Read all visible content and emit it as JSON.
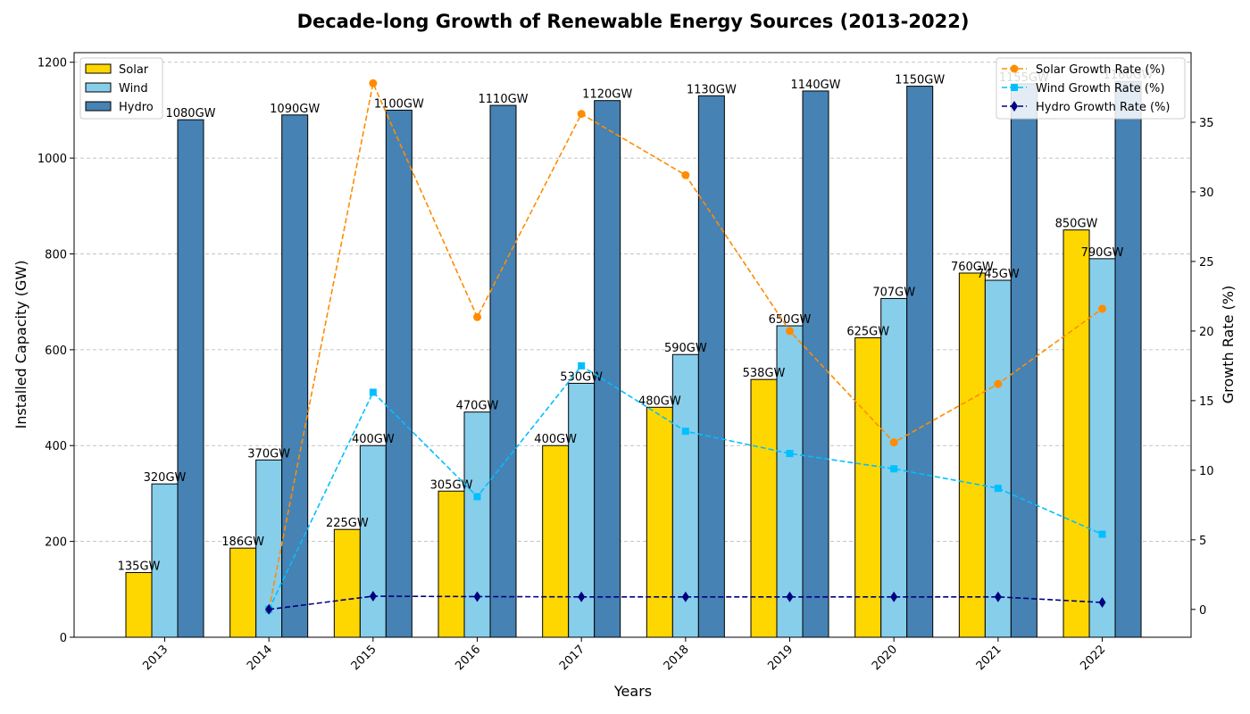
{
  "chart_data": {
    "type": "bar",
    "title": "Decade-long Growth of Renewable Energy Sources (2013-2022)",
    "xlabel": "Years",
    "ylabel": "Installed Capacity (GW)",
    "y2label": "Growth Rate (%)",
    "categories": [
      "2013",
      "2014",
      "2015",
      "2016",
      "2017",
      "2018",
      "2019",
      "2020",
      "2021",
      "2022"
    ],
    "ylim": [
      0,
      1220
    ],
    "yticks": [
      0,
      200,
      400,
      600,
      800,
      1000,
      1200
    ],
    "y2lim": [
      -2,
      40
    ],
    "y2ticks": [
      0,
      5,
      10,
      15,
      20,
      25,
      30,
      35
    ],
    "grid": "y-dashed",
    "value_suffix": "GW",
    "series": [
      {
        "name": "Solar",
        "color": "#FFD700",
        "values": [
          135,
          186,
          225,
          305,
          400,
          480,
          538,
          625,
          760,
          850
        ]
      },
      {
        "name": "Wind",
        "color": "#87CEEB",
        "values": [
          320,
          370,
          400,
          470,
          530,
          590,
          650,
          707,
          745,
          790
        ]
      },
      {
        "name": "Hydro",
        "color": "#4682B4",
        "values": [
          1080,
          1090,
          1100,
          1110,
          1120,
          1130,
          1140,
          1150,
          1155,
          1160
        ]
      }
    ],
    "line_series": [
      {
        "name": "Solar Growth Rate (%)",
        "color": "#FF8C00",
        "marker": "circle",
        "start_index": 1,
        "values": [
          null,
          0.0,
          37.8,
          21.0,
          35.6,
          31.2,
          20.0,
          12.0,
          16.2,
          21.6
        ]
      },
      {
        "name": "Wind Growth Rate (%)",
        "color": "#00BFFF",
        "marker": "square",
        "start_index": 1,
        "values": [
          null,
          0.0,
          15.6,
          8.1,
          17.5,
          12.8,
          11.2,
          10.1,
          8.7,
          5.4
        ]
      },
      {
        "name": "Hydro Growth Rate (%)",
        "color": "#000080",
        "marker": "diamond",
        "start_index": 1,
        "values": [
          null,
          0.0,
          0.95,
          0.92,
          0.9,
          0.9,
          0.9,
          0.9,
          0.9,
          0.5
        ]
      }
    ],
    "legend_bars": "top-left",
    "legend_lines": "top-right"
  }
}
